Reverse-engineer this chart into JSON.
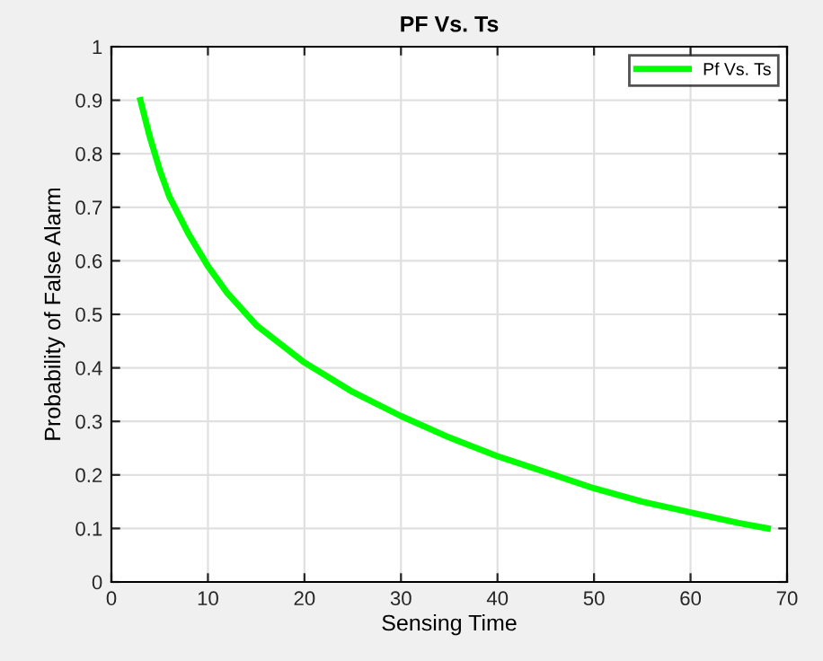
{
  "chart_data": {
    "type": "line",
    "title": "PF Vs. Ts",
    "xlabel": "Sensing Time",
    "ylabel": "Probability of False Alarm",
    "series": [
      {
        "name": "Pf Vs. Ts",
        "color": "#00ff00",
        "x": [
          3,
          4,
          5,
          6,
          8,
          10,
          12,
          15,
          20,
          25,
          30,
          35,
          40,
          45,
          50,
          55,
          60,
          65,
          68
        ],
        "values": [
          0.9,
          0.83,
          0.77,
          0.72,
          0.65,
          0.59,
          0.54,
          0.48,
          0.41,
          0.355,
          0.31,
          0.27,
          0.235,
          0.205,
          0.175,
          0.15,
          0.13,
          0.11,
          0.1
        ]
      }
    ],
    "xlim": [
      0,
      70
    ],
    "ylim": [
      0,
      1
    ],
    "xticks": [
      0,
      10,
      20,
      30,
      40,
      50,
      60,
      70
    ],
    "yticks": [
      0,
      0.1,
      0.2,
      0.3,
      0.4,
      0.5,
      0.6,
      0.7,
      0.8,
      0.9,
      1
    ],
    "grid": true,
    "legend": "top right",
    "marker": "none",
    "line_style": "solid"
  }
}
